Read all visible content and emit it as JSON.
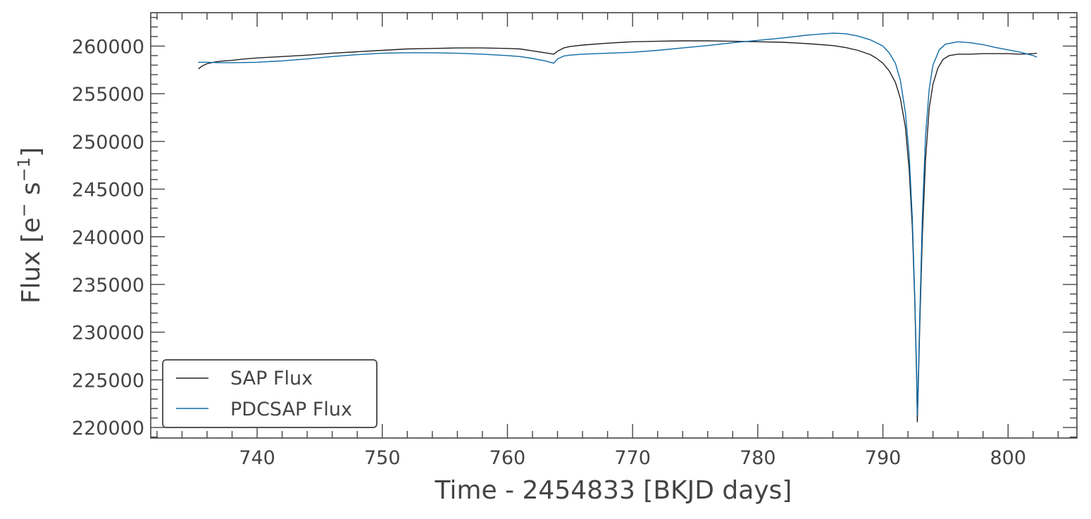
{
  "chart_data": {
    "type": "line",
    "xlabel": "Time - 2454833 [BKJD days]",
    "ylabel": {
      "text": "Flux [e",
      "sup1": "−",
      "mid": " s",
      "sup2": "−1",
      "end": "]"
    },
    "xlim": [
      731.5,
      805.5
    ],
    "ylim": [
      218900,
      263500
    ],
    "xticks": [
      740,
      750,
      760,
      770,
      780,
      790,
      800
    ],
    "xtick_labels": [
      "740",
      "750",
      "760",
      "770",
      "780",
      "790",
      "800"
    ],
    "yticks": [
      220000,
      225000,
      230000,
      235000,
      240000,
      245000,
      250000,
      255000,
      260000
    ],
    "ytick_labels": [
      "220000",
      "225000",
      "230000",
      "235000",
      "240000",
      "245000",
      "250000",
      "255000",
      "260000"
    ],
    "x_minor_step": 2,
    "y_minor_step": 1000,
    "grid": false,
    "legend_position": "lower left",
    "series": [
      {
        "name": "SAP Flux",
        "color": "#222222",
        "points": [
          [
            735.3,
            257600
          ],
          [
            735.6,
            257900
          ],
          [
            736,
            258150
          ],
          [
            736.5,
            258300
          ],
          [
            737,
            258400
          ],
          [
            738,
            258500
          ],
          [
            739,
            258650
          ],
          [
            740,
            258750
          ],
          [
            742,
            258900
          ],
          [
            744,
            259050
          ],
          [
            746,
            259250
          ],
          [
            748,
            259400
          ],
          [
            750,
            259550
          ],
          [
            752,
            259700
          ],
          [
            754,
            259750
          ],
          [
            756,
            259800
          ],
          [
            758,
            259800
          ],
          [
            760,
            259750
          ],
          [
            761,
            259700
          ],
          [
            762,
            259500
          ],
          [
            763,
            259300
          ],
          [
            763.7,
            259150
          ],
          [
            764,
            259450
          ],
          [
            764.5,
            259800
          ],
          [
            765,
            259950
          ],
          [
            766,
            260100
          ],
          [
            768,
            260300
          ],
          [
            770,
            260450
          ],
          [
            772,
            260500
          ],
          [
            774,
            260550
          ],
          [
            776,
            260550
          ],
          [
            778,
            260500
          ],
          [
            780,
            260450
          ],
          [
            782,
            260400
          ],
          [
            784,
            260250
          ],
          [
            786,
            260050
          ],
          [
            787,
            259850
          ],
          [
            788,
            259550
          ],
          [
            789,
            259100
          ],
          [
            789.5,
            258700
          ],
          [
            790,
            258200
          ],
          [
            790.5,
            257400
          ],
          [
            791,
            256200
          ],
          [
            791.4,
            254500
          ],
          [
            791.8,
            251500
          ],
          [
            792.1,
            247000
          ],
          [
            792.35,
            241000
          ],
          [
            792.55,
            233000
          ],
          [
            792.7,
            225000
          ],
          [
            792.75,
            220600
          ],
          [
            792.8,
            223000
          ],
          [
            792.95,
            231000
          ],
          [
            793.15,
            240000
          ],
          [
            793.4,
            248000
          ],
          [
            793.7,
            253500
          ],
          [
            794,
            256000
          ],
          [
            794.4,
            257700
          ],
          [
            794.8,
            258600
          ],
          [
            795.3,
            259000
          ],
          [
            796,
            259150
          ],
          [
            797,
            259150
          ],
          [
            798,
            259200
          ],
          [
            799,
            259200
          ],
          [
            800,
            259200
          ],
          [
            801,
            259150
          ],
          [
            802,
            259200
          ],
          [
            802.3,
            259250
          ]
        ]
      },
      {
        "name": "PDCSAP Flux",
        "color": "#0e6aa5",
        "points": [
          [
            735.3,
            258300
          ],
          [
            736,
            258300
          ],
          [
            737,
            258250
          ],
          [
            738,
            258250
          ],
          [
            740,
            258300
          ],
          [
            742,
            258450
          ],
          [
            744,
            258650
          ],
          [
            746,
            258900
          ],
          [
            748,
            259100
          ],
          [
            750,
            259250
          ],
          [
            752,
            259300
          ],
          [
            754,
            259300
          ],
          [
            756,
            259250
          ],
          [
            758,
            259150
          ],
          [
            760,
            259000
          ],
          [
            761,
            258900
          ],
          [
            762,
            258700
          ],
          [
            763,
            258450
          ],
          [
            763.7,
            258200
          ],
          [
            764,
            258650
          ],
          [
            764.5,
            258950
          ],
          [
            765,
            259050
          ],
          [
            766,
            259150
          ],
          [
            768,
            259250
          ],
          [
            770,
            259350
          ],
          [
            772,
            259550
          ],
          [
            774,
            259800
          ],
          [
            776,
            260050
          ],
          [
            778,
            260350
          ],
          [
            780,
            260600
          ],
          [
            782,
            260850
          ],
          [
            784,
            261150
          ],
          [
            786,
            261350
          ],
          [
            787,
            261300
          ],
          [
            788,
            261050
          ],
          [
            789,
            260650
          ],
          [
            790,
            260000
          ],
          [
            790.5,
            259300
          ],
          [
            791,
            258200
          ],
          [
            791.4,
            256400
          ],
          [
            791.8,
            253000
          ],
          [
            792.1,
            248500
          ],
          [
            792.35,
            242000
          ],
          [
            792.55,
            233500
          ],
          [
            792.7,
            225500
          ],
          [
            792.75,
            221300
          ],
          [
            792.8,
            223500
          ],
          [
            792.95,
            232000
          ],
          [
            793.15,
            242000
          ],
          [
            793.4,
            250500
          ],
          [
            793.7,
            255500
          ],
          [
            794,
            258000
          ],
          [
            794.5,
            259600
          ],
          [
            795,
            260200
          ],
          [
            796,
            260450
          ],
          [
            797,
            260350
          ],
          [
            798,
            260150
          ],
          [
            799,
            259850
          ],
          [
            800,
            259600
          ],
          [
            801,
            259350
          ],
          [
            802,
            259000
          ],
          [
            802.3,
            258850
          ]
        ]
      }
    ]
  }
}
